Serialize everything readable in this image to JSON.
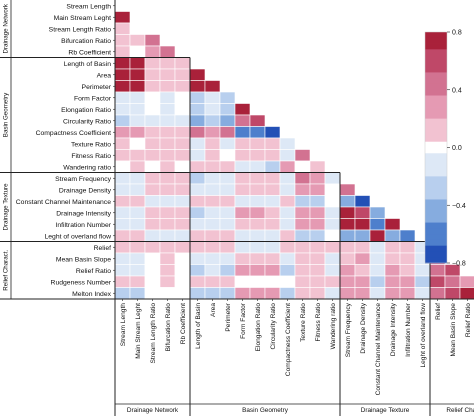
{
  "chart_data": {
    "type": "heatmap",
    "title": "",
    "variables": [
      "Stream Length",
      "Main Stream Leght",
      "Stream Length Ratio",
      "Bifurcation Ratio",
      "Rb Coefficient",
      "Length of Basin",
      "Area",
      "Perimeter",
      "Form Factor",
      "Elongation Ratio",
      "Circularity Ratio",
      "Compactness Coefficient",
      "Texture Ratio",
      "Fitness Ratio",
      "Wandering ratio",
      "Stream Frequency",
      "Drainage Density",
      "Constant Channel Maintenance",
      "Drainage Intensity",
      "Infiltration Number",
      "Leght of overland flow",
      "Relief",
      "Mean Basin Slope",
      "Relief Ratio",
      "Rudgeness Number",
      "Melton Index"
    ],
    "groups": [
      {
        "name": "Drainage Network",
        "start": 0,
        "end": 4
      },
      {
        "name": "Basin Geometry",
        "start": 5,
        "end": 14
      },
      {
        "name": "Drainage Texture",
        "start": 15,
        "end": 20
      },
      {
        "name": "Relief Charact.",
        "start": 21,
        "end": 25
      }
    ],
    "matrix_lower": [
      [],
      [
        0.85
      ],
      [
        0.05,
        0.0
      ],
      [
        0.1,
        0.05,
        0.45
      ],
      [
        0.05,
        0.0,
        0.25,
        0.5
      ],
      [
        0.9,
        0.85,
        0.05,
        0.1,
        0.05
      ],
      [
        0.9,
        0.85,
        0.05,
        0.1,
        0.05,
        0.9
      ],
      [
        0.9,
        0.85,
        0.05,
        0.1,
        0.05,
        0.95,
        0.9
      ],
      [
        -0.2,
        -0.15,
        0.0,
        -0.05,
        0.0,
        -0.3,
        -0.1,
        -0.25
      ],
      [
        -0.2,
        -0.15,
        0.0,
        -0.05,
        0.0,
        -0.3,
        -0.1,
        -0.25,
        0.95
      ],
      [
        -0.25,
        -0.2,
        -0.05,
        -0.1,
        -0.05,
        -0.4,
        -0.25,
        -0.45,
        0.5,
        0.55
      ],
      [
        0.3,
        0.25,
        0.05,
        0.1,
        0.05,
        0.45,
        0.3,
        0.5,
        -0.55,
        -0.6,
        -0.95
      ],
      [
        0.05,
        0.0,
        0.1,
        0.2,
        0.05,
        -0.2,
        0.1,
        -0.05,
        0.15,
        0.15,
        0.1,
        -0.1,
        0.1
      ],
      [
        0.1,
        0.05,
        0.05,
        0.15,
        0.05,
        -0.15,
        0.05,
        0.0,
        0.1,
        0.1,
        0.1,
        -0.05,
        0.5
      ],
      [
        0.0,
        0.1,
        0.0,
        0.05,
        0.0,
        0.2,
        0.05,
        0.2,
        -0.2,
        -0.2,
        -0.3,
        0.3,
        0.0,
        0.1
      ],
      [
        -0.15,
        -0.1,
        0.05,
        0.1,
        0.05,
        -0.25,
        -0.1,
        -0.2,
        0.2,
        0.2,
        0.2,
        -0.2,
        0.45,
        0.3,
        -0.1
      ],
      [
        -0.05,
        -0.05,
        0.05,
        0.1,
        0.05,
        -0.2,
        -0.1,
        -0.15,
        0.15,
        0.15,
        0.1,
        -0.1,
        0.35,
        0.3,
        0.0,
        0.5
      ],
      [
        0.05,
        0.05,
        -0.05,
        -0.1,
        -0.05,
        0.15,
        0.1,
        0.15,
        -0.15,
        -0.15,
        -0.1,
        0.1,
        -0.3,
        -0.3,
        0.0,
        -0.5,
        -0.75
      ],
      [
        -0.15,
        -0.1,
        0.05,
        0.1,
        0.05,
        -0.25,
        -0.15,
        -0.2,
        0.25,
        0.25,
        0.2,
        -0.2,
        0.3,
        0.25,
        -0.1,
        0.85,
        0.6,
        -0.45
      ],
      [
        -0.1,
        -0.05,
        0.05,
        0.1,
        0.05,
        -0.2,
        -0.1,
        -0.15,
        0.2,
        0.2,
        0.15,
        -0.15,
        0.35,
        0.3,
        -0.05,
        0.75,
        0.8,
        -0.6,
        0.7
      ],
      [
        0.05,
        0.05,
        -0.05,
        -0.1,
        -0.05,
        0.15,
        0.1,
        0.15,
        -0.15,
        -0.15,
        -0.1,
        0.1,
        -0.3,
        -0.3,
        0.0,
        -0.45,
        -0.5,
        0.85,
        -0.5,
        -0.6
      ],
      [
        0.15,
        0.2,
        0.05,
        0.1,
        0.05,
        0.2,
        0.15,
        0.2,
        -0.1,
        -0.1,
        -0.1,
        0.1,
        0.1,
        0.15,
        0.1,
        0.1,
        0.15,
        -0.2,
        0.05,
        0.1,
        -0.15
      ],
      [
        -0.1,
        -0.05,
        0.0,
        0.05,
        0.0,
        -0.15,
        -0.1,
        -0.15,
        0.15,
        0.15,
        0.15,
        -0.15,
        0.1,
        0.1,
        -0.05,
        0.2,
        0.25,
        -0.2,
        0.2,
        0.2,
        -0.2,
        0.45
      ],
      [
        -0.2,
        -0.15,
        0.0,
        0.05,
        0.0,
        -0.3,
        -0.2,
        -0.25,
        0.3,
        0.3,
        0.3,
        -0.3,
        0.05,
        0.05,
        -0.1,
        0.25,
        0.2,
        -0.15,
        0.25,
        0.2,
        -0.15,
        0.4,
        0.55
      ],
      [
        0.05,
        0.05,
        0.0,
        0.05,
        0.0,
        0.05,
        0.05,
        0.05,
        0.0,
        0.0,
        0.0,
        0.0,
        0.15,
        0.15,
        0.05,
        0.3,
        0.35,
        -0.35,
        0.25,
        0.3,
        -0.3,
        0.55,
        0.5,
        0.3
      ],
      [
        -0.3,
        -0.25,
        0.0,
        0.0,
        0.0,
        -0.35,
        -0.3,
        -0.35,
        0.3,
        0.3,
        0.3,
        -0.35,
        0.05,
        0.05,
        -0.1,
        0.25,
        0.25,
        -0.2,
        0.25,
        0.25,
        -0.2,
        0.45,
        0.55,
        0.75,
        0.45
      ]
    ],
    "colorbar": {
      "min": -0.8,
      "max": 0.8,
      "ticks": [
        0.8,
        0.4,
        0.0,
        -0.4,
        -0.8
      ],
      "tick_labels": [
        "0.8",
        "0.4",
        "0.0",
        "−0.4",
        "−0.8"
      ]
    },
    "colors": {
      "positive": [
        "#f2c2d1",
        "#e59ab3",
        "#d27291",
        "#bf4868",
        "#a9213a"
      ],
      "negative": [
        "#dde8f6",
        "#b8cfee",
        "#86acdf",
        "#4e7fcc",
        "#2350b6"
      ],
      "neutral": "#ffffff",
      "grid": "#ffffff",
      "group_line": "#222222"
    }
  }
}
